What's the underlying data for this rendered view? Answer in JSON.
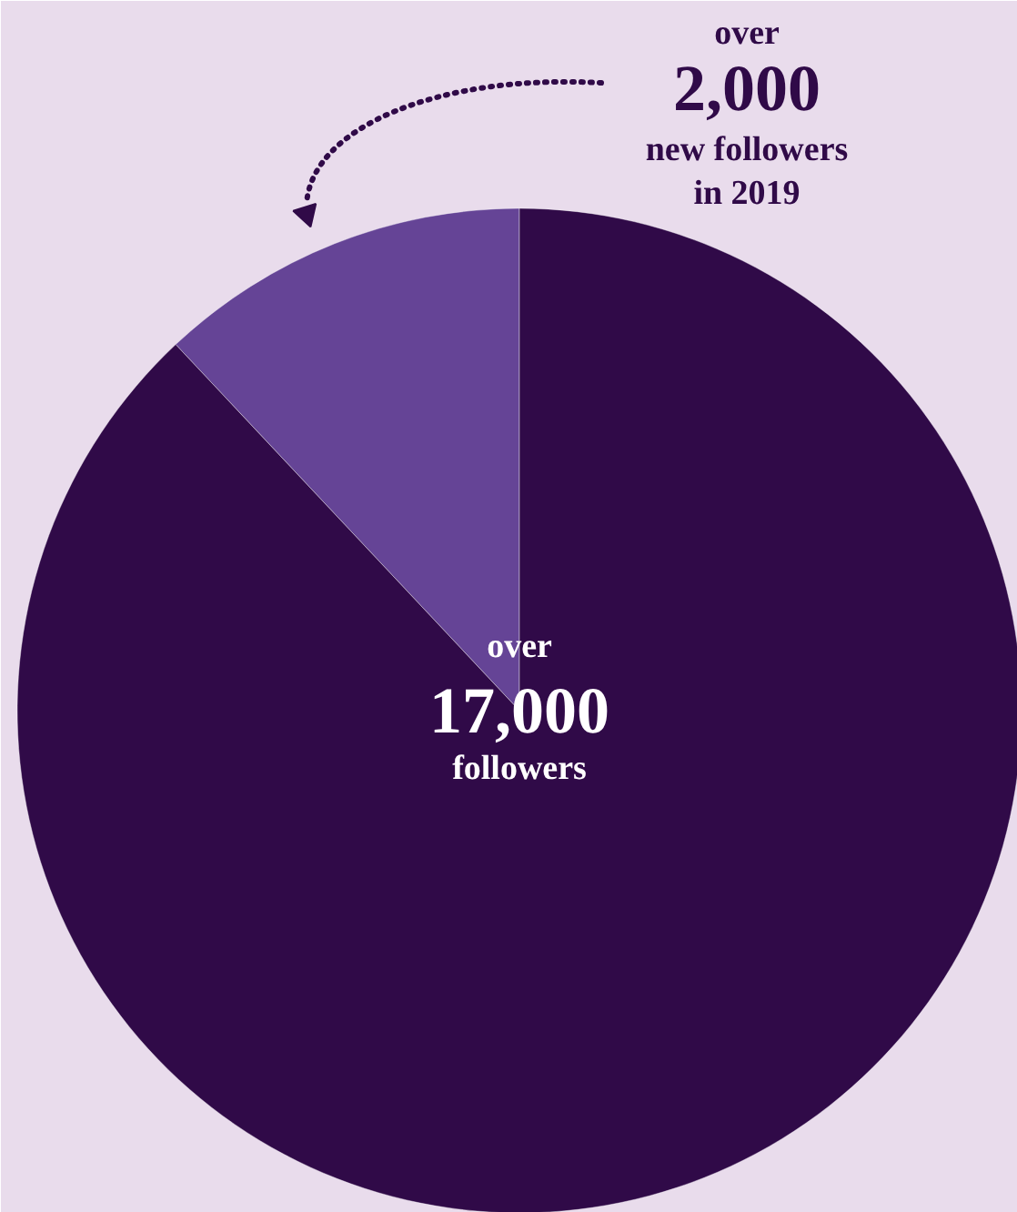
{
  "chart_data": {
    "type": "pie",
    "categories": [
      null,
      null
    ],
    "values": [
      12,
      88
    ],
    "colors": [
      "#654496",
      "#300a48"
    ],
    "annotations": [
      "over\n2,000\nnew followers\nin 2019",
      "over\n17,000\nfollowers"
    ]
  }
}
